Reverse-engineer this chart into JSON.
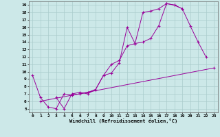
{
  "bg_color": "#cce8e8",
  "grid_color": "#aacccc",
  "line_color": "#990099",
  "xlim": [
    -0.5,
    23.5
  ],
  "ylim": [
    4.5,
    19.5
  ],
  "xticks": [
    0,
    1,
    2,
    3,
    4,
    5,
    6,
    7,
    8,
    9,
    10,
    11,
    12,
    13,
    14,
    15,
    16,
    17,
    18,
    19,
    20,
    21,
    22,
    23
  ],
  "yticks": [
    5,
    6,
    7,
    8,
    9,
    10,
    11,
    12,
    13,
    14,
    15,
    16,
    17,
    18,
    19
  ],
  "xlabel": "Windchill (Refroidissement éolien,°C)",
  "line1_x": [
    0,
    1,
    2,
    3,
    4,
    5,
    6,
    7,
    8,
    9,
    10,
    11,
    12,
    13,
    14,
    15,
    16,
    17,
    18,
    19
  ],
  "line1_y": [
    9.5,
    6.5,
    5.2,
    5.0,
    7.0,
    6.8,
    7.0,
    7.2,
    7.6,
    9.5,
    11.0,
    11.5,
    13.5,
    13.8,
    18.0,
    18.2,
    18.5,
    19.2,
    19.0,
    18.5
  ],
  "line2_x": [
    3,
    4,
    5,
    6,
    7,
    8,
    9,
    10,
    11,
    12,
    13,
    14,
    15,
    16,
    17,
    18,
    19,
    20,
    21,
    22
  ],
  "line2_y": [
    6.5,
    5.0,
    7.0,
    7.2,
    7.0,
    7.6,
    9.5,
    9.8,
    11.2,
    16.0,
    13.8,
    14.0,
    14.5,
    16.2,
    19.2,
    19.0,
    18.5,
    16.2,
    14.0,
    12.0
  ],
  "line3_x": [
    1,
    23
  ],
  "line3_y": [
    6.0,
    10.5
  ]
}
